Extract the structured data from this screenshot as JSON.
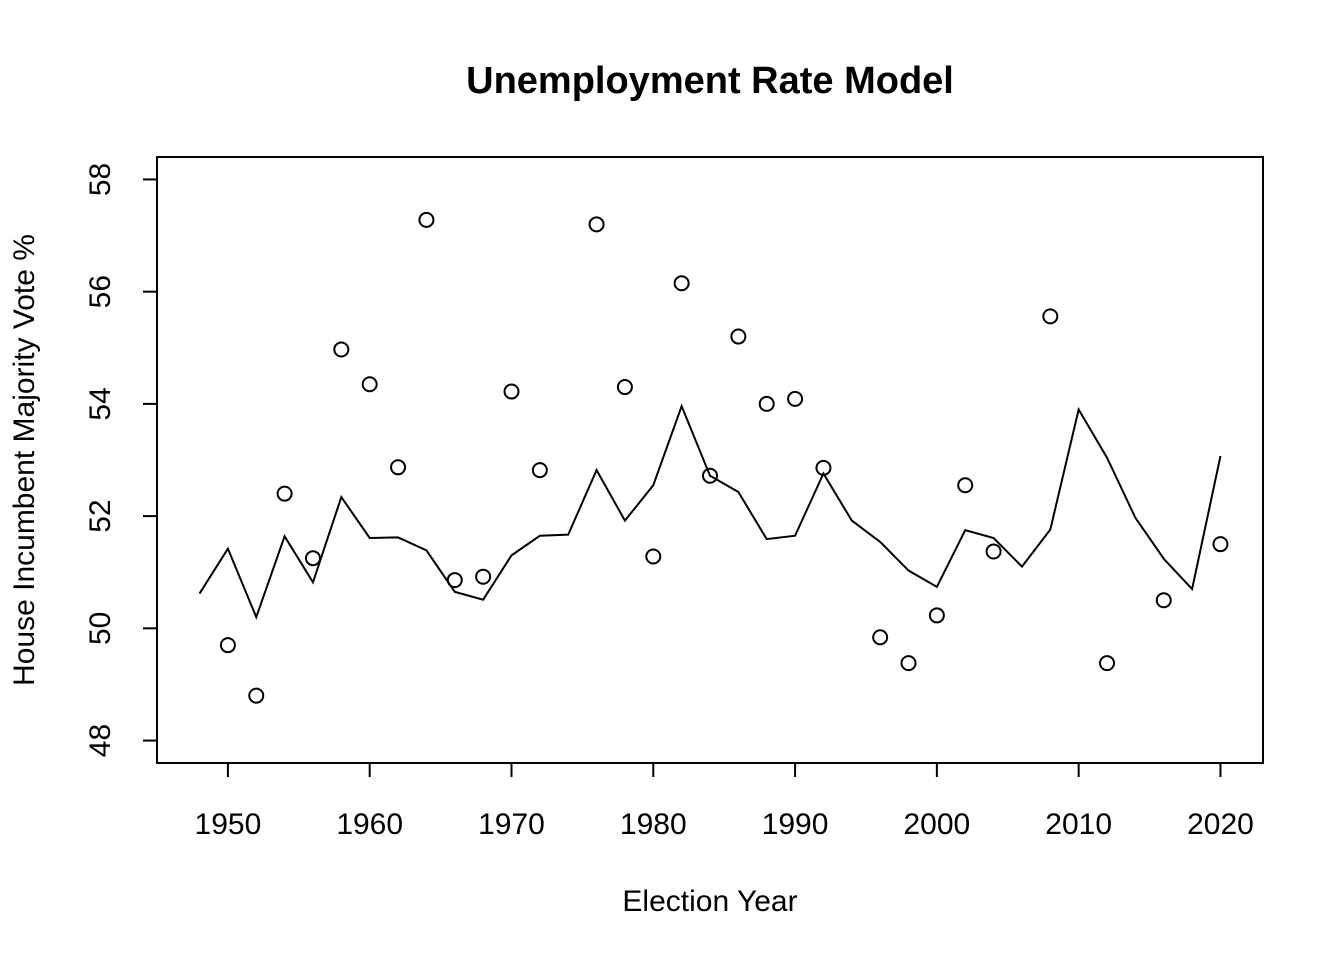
{
  "chart_data": {
    "type": "scatter",
    "title": "Unemployment Rate Model",
    "xlabel": "Election Year",
    "ylabel": "House Incumbent Majority Vote %",
    "xlim": [
      1945,
      2023
    ],
    "ylim": [
      47.6,
      58.4
    ],
    "x_ticks": [
      1950,
      1960,
      1970,
      1980,
      1990,
      2000,
      2010,
      2020
    ],
    "y_ticks": [
      48,
      50,
      52,
      54,
      56,
      58
    ],
    "grid": false,
    "legend": "none",
    "series": [
      {
        "kind": "points",
        "marker": "open-circle",
        "x": [
          1950,
          1952,
          1954,
          1956,
          1958,
          1960,
          1962,
          1964,
          1966,
          1968,
          1970,
          1972,
          1976,
          1978,
          1980,
          1982,
          1984,
          1986,
          1988,
          1990,
          1992,
          1996,
          1998,
          2000,
          2002,
          2004,
          2008,
          2012,
          2016,
          2020
        ],
        "y": [
          49.7,
          48.8,
          52.4,
          51.25,
          54.97,
          54.35,
          52.87,
          57.28,
          50.86,
          50.92,
          54.22,
          52.82,
          57.2,
          54.3,
          51.28,
          56.15,
          52.72,
          55.2,
          54.0,
          54.09,
          52.86,
          49.84,
          49.38,
          50.23,
          52.55,
          51.37,
          55.56,
          49.38,
          50.5,
          51.5
        ]
      },
      {
        "kind": "line",
        "x": [
          1948,
          1950,
          1952,
          1954,
          1956,
          1958,
          1960,
          1962,
          1964,
          1966,
          1968,
          1970,
          1972,
          1974,
          1976,
          1978,
          1980,
          1982,
          1984,
          1986,
          1988,
          1990,
          1992,
          1994,
          1996,
          1998,
          2000,
          2002,
          2004,
          2006,
          2008,
          2010,
          2012,
          2014,
          2016,
          2018,
          2020
        ],
        "y": [
          50.62,
          51.42,
          50.2,
          51.64,
          50.82,
          52.34,
          51.61,
          51.62,
          51.39,
          50.65,
          50.51,
          51.3,
          51.65,
          51.67,
          52.82,
          51.92,
          52.55,
          53.96,
          52.72,
          52.43,
          51.59,
          51.65,
          52.76,
          51.92,
          51.54,
          51.03,
          50.74,
          51.75,
          51.61,
          51.1,
          51.76,
          53.9,
          53.04,
          51.97,
          51.24,
          50.7,
          53.07
        ]
      }
    ]
  }
}
